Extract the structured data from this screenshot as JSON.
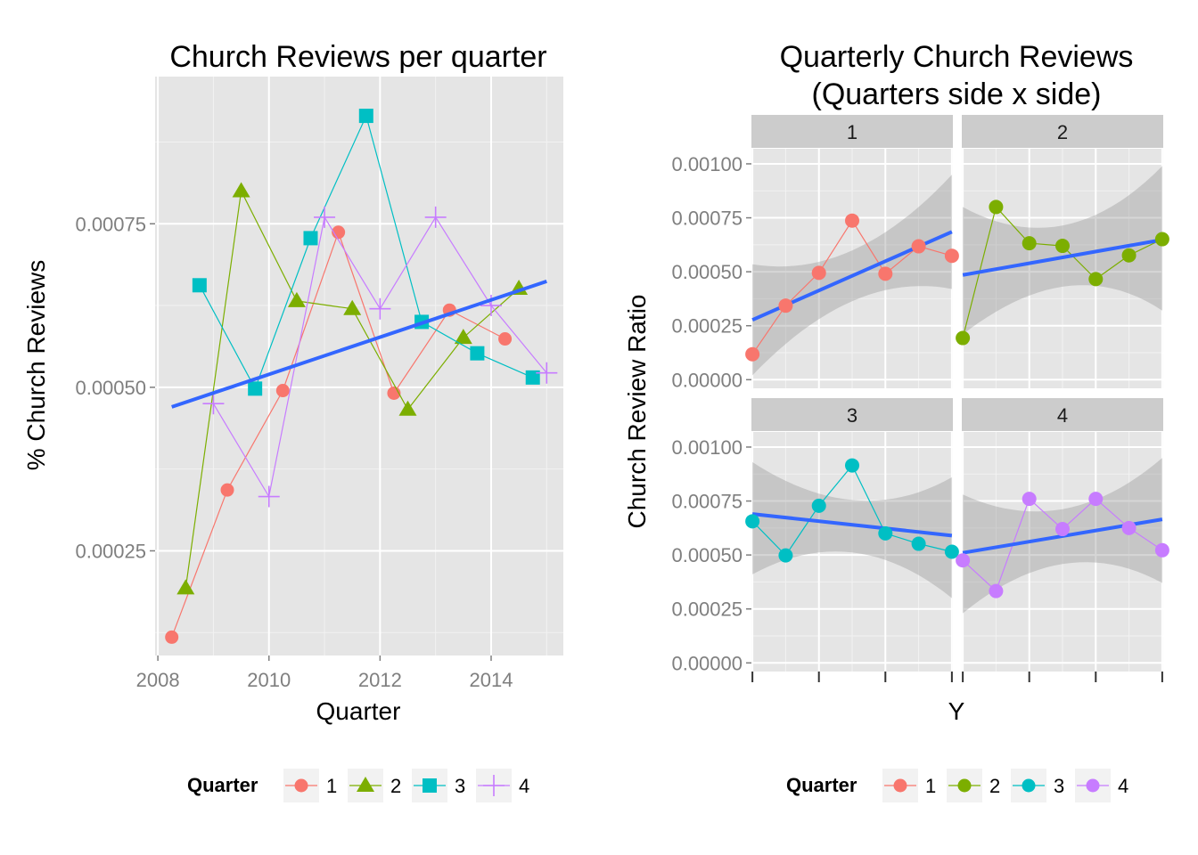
{
  "colors": {
    "q1": "#F8766D",
    "q2": "#7CAE00",
    "q3": "#00BFC4",
    "q4": "#C77CFF",
    "trend": "#3366FF",
    "panel_bg": "#E5E5E5",
    "grid": "#FFFFFF",
    "strip_bg": "#CCCCCC",
    "ribbon": "#999999"
  },
  "chart_data": [
    {
      "type": "line",
      "title": "Church Reviews per quarter",
      "xlabel": "Quarter",
      "ylabel": "% Church Reviews",
      "xlim": [
        2007.95,
        2015.3
      ],
      "ylim": [
        9e-05,
        0.000975
      ],
      "x_ticks": [
        2008,
        2010,
        2012,
        2014
      ],
      "x_tick_labels": [
        "2008",
        "2010",
        "2012",
        "2014"
      ],
      "y_ticks": [
        0.00025,
        0.0005,
        0.00075
      ],
      "y_tick_labels": [
        "0.00025",
        "0.00050",
        "0.00075"
      ],
      "grid": true,
      "legend": {
        "title": "Quarter",
        "position": "bottom",
        "entries": [
          {
            "label": "1",
            "series": 0,
            "marker": "circle"
          },
          {
            "label": "2",
            "series": 1,
            "marker": "triangle"
          },
          {
            "label": "3",
            "series": 2,
            "marker": "square"
          },
          {
            "label": "4",
            "series": 3,
            "marker": "plus"
          }
        ]
      },
      "series": [
        {
          "name": "1",
          "color": "#F8766D",
          "marker": "circle",
          "x": [
            2008.25,
            2009.25,
            2010.25,
            2011.25,
            2012.25,
            2013.25,
            2014.25
          ],
          "y": [
            0.000118,
            0.000343,
            0.000495,
            0.000737,
            0.000491,
            0.000618,
            0.000574
          ]
        },
        {
          "name": "2",
          "color": "#7CAE00",
          "marker": "triangle",
          "x": [
            2008.5,
            2009.5,
            2010.5,
            2011.5,
            2012.5,
            2013.5,
            2014.5
          ],
          "y": [
            0.000193,
            0.0008,
            0.000632,
            0.00062,
            0.000466,
            0.000576,
            0.000651
          ]
        },
        {
          "name": "3",
          "color": "#00BFC4",
          "marker": "square",
          "x": [
            2008.75,
            2009.75,
            2010.75,
            2011.75,
            2012.75,
            2013.75,
            2014.75
          ],
          "y": [
            0.000656,
            0.000498,
            0.000728,
            0.000915,
            0.0006,
            0.000552,
            0.000515
          ]
        },
        {
          "name": "4",
          "color": "#C77CFF",
          "marker": "plus",
          "x": [
            2009.0,
            2010.0,
            2011.0,
            2012.0,
            2013.0,
            2014.0,
            2015.0
          ],
          "y": [
            0.000475,
            0.000333,
            0.00076,
            0.00062,
            0.00076,
            0.000625,
            0.000522
          ]
        }
      ],
      "trend": {
        "x": [
          2008.25,
          2015.0
        ],
        "y": [
          0.00047,
          0.000662
        ]
      }
    },
    {
      "type": "line",
      "title": "Quarterly Church Reviews",
      "subtitle": "(Quarters side x side)",
      "xlabel": "Y",
      "ylabel": "Church Review Ratio",
      "xlim": [
        0.97,
        7.03
      ],
      "ylim": [
        -4e-05,
        0.00107
      ],
      "x_ticks": [
        1,
        3,
        5,
        7
      ],
      "y_ticks": [
        0,
        0.00025,
        0.0005,
        0.00075,
        0.001
      ],
      "y_tick_labels": [
        "0.00000",
        "0.00025",
        "0.00050",
        "0.00075",
        "0.00100"
      ],
      "grid": true,
      "legend": {
        "title": "Quarter",
        "position": "bottom",
        "entries": [
          {
            "label": "1",
            "series": 0
          },
          {
            "label": "2",
            "series": 1
          },
          {
            "label": "3",
            "series": 2
          },
          {
            "label": "4",
            "series": 3
          }
        ]
      },
      "facets": [
        {
          "label": "1",
          "color": "#F8766D",
          "x": [
            1,
            2,
            3,
            4,
            5,
            6,
            7
          ],
          "y": [
            0.000118,
            0.000343,
            0.000495,
            0.000737,
            0.000491,
            0.000618,
            0.000574
          ],
          "trend": [
            0.000277,
            0.000685
          ],
          "band_lower": [
            2e-05,
            0.00042
          ],
          "band_upper": [
            0.000535,
            0.00095
          ]
        },
        {
          "label": "2",
          "color": "#7CAE00",
          "x": [
            1,
            2,
            3,
            4,
            5,
            6,
            7
          ],
          "y": [
            0.000193,
            0.0008,
            0.000632,
            0.00062,
            0.000466,
            0.000576,
            0.000651
          ],
          "trend": [
            0.000485,
            0.000648
          ],
          "band_lower": [
            0.00021,
            0.00032
          ],
          "band_upper": [
            0.0008,
            0.00099
          ]
        },
        {
          "label": "3",
          "color": "#00BFC4",
          "x": [
            1,
            2,
            3,
            4,
            5,
            6,
            7
          ],
          "y": [
            0.000656,
            0.000498,
            0.000728,
            0.000915,
            0.0006,
            0.000552,
            0.000515
          ],
          "trend": [
            0.00069,
            0.00059
          ],
          "band_lower": [
            0.00041,
            0.0003
          ],
          "band_upper": [
            0.00093,
            0.00086
          ]
        },
        {
          "label": "4",
          "color": "#C77CFF",
          "x": [
            1,
            2,
            3,
            4,
            5,
            6,
            7
          ],
          "y": [
            0.000475,
            0.000333,
            0.00076,
            0.00062,
            0.00076,
            0.000625,
            0.000522
          ],
          "trend": [
            0.00051,
            0.000665
          ],
          "band_lower": [
            0.00023,
            0.00037
          ],
          "band_upper": [
            0.00078,
            0.00095
          ]
        }
      ]
    }
  ]
}
